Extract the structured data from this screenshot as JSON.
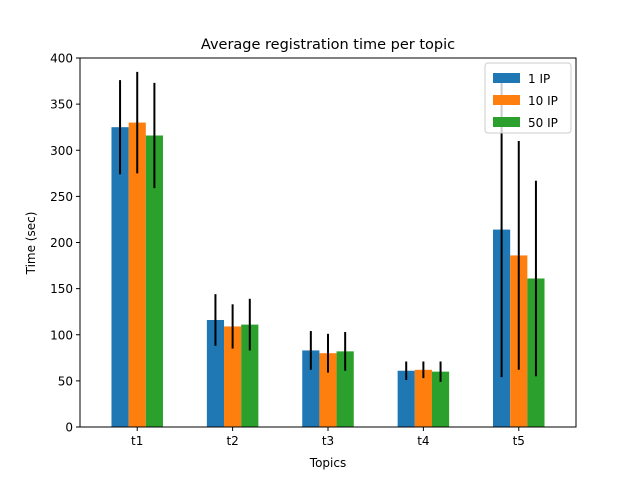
{
  "chart_data": {
    "type": "bar",
    "title": "Average registration time per topic",
    "xlabel": "Topics",
    "ylabel": "Time (sec)",
    "categories": [
      "t1",
      "t2",
      "t3",
      "t4",
      "t5"
    ],
    "ylim": [
      0,
      400
    ],
    "yticks": [
      0,
      50,
      100,
      150,
      200,
      250,
      300,
      350,
      400
    ],
    "grid": false,
    "legend_position": "top-right",
    "series": [
      {
        "name": "1 IP",
        "color": "#1f77b4",
        "values": [
          325,
          116,
          83,
          61,
          214
        ],
        "errors": [
          51,
          28,
          21,
          10,
          160
        ]
      },
      {
        "name": "10 IP",
        "color": "#ff7f0e",
        "values": [
          330,
          109,
          80,
          62,
          186
        ],
        "errors": [
          55,
          24,
          21,
          9,
          124
        ]
      },
      {
        "name": "50 IP",
        "color": "#2ca02c",
        "values": [
          316,
          111,
          82,
          60,
          161
        ],
        "errors": [
          57,
          28,
          21,
          11,
          106
        ]
      }
    ]
  }
}
